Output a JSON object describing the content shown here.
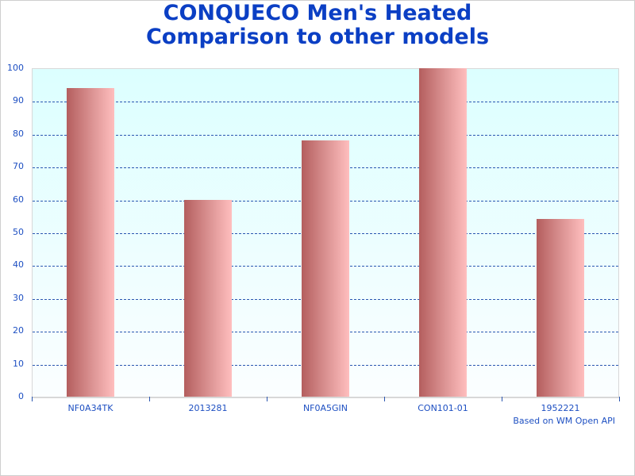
{
  "chart_data": {
    "type": "bar",
    "title": "CONQUECO Men's Heated Comparison to other models",
    "title_lines": [
      "CONQUECO Men's Heated",
      "Comparison to other models"
    ],
    "categories": [
      "NF0A34TK",
      "2013281",
      "NF0A5GIN",
      "CON101-01",
      "1952221"
    ],
    "values": [
      94,
      60,
      78,
      100,
      54
    ],
    "xlabel": "",
    "ylabel": "",
    "ylim": [
      0,
      100
    ],
    "yticks": [
      0,
      10,
      20,
      30,
      40,
      50,
      60,
      70,
      80,
      90,
      100
    ],
    "grid": true,
    "legend": null,
    "annotation": "Based on WM Open API",
    "colors": {
      "title": "#0b3fc4",
      "axis_text": "#1d4fc2",
      "grid": "#2a56b0",
      "bar_gradient_start": "#b45e5e",
      "bar_gradient_end": "#ffbebe",
      "plot_bg_top": "#dcffff",
      "plot_bg_bottom": "#fbfeff"
    }
  }
}
